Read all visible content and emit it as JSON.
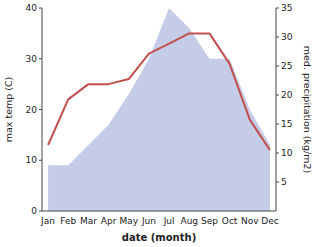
{
  "chart_data": {
    "type": "line",
    "xlabel": "date (month)",
    "ylabel": "max temp (C)",
    "y2label": "med. precipitation (kg/m2)",
    "categories": [
      "Jan",
      "Feb",
      "Mar",
      "Apr",
      "May",
      "Jun",
      "Jul",
      "Aug",
      "Sep",
      "Oct",
      "Nov",
      "Dec"
    ],
    "series": [
      {
        "type": "area",
        "color": "#c5cce8",
        "values": [
          9,
          9,
          13,
          17,
          23,
          30,
          40,
          36,
          30,
          30,
          20,
          13
        ]
      },
      {
        "type": "line",
        "color": "#c0504d",
        "values": [
          13,
          22,
          25,
          25,
          26,
          31,
          33,
          35,
          35,
          29,
          18,
          12
        ]
      }
    ],
    "ylim": [
      0,
      40
    ],
    "yticks": [
      0,
      10,
      20,
      30,
      40
    ],
    "y2lim": [
      0,
      35
    ],
    "y2ticks": [
      5,
      10,
      15,
      20,
      25,
      30,
      35
    ],
    "grid": false
  }
}
